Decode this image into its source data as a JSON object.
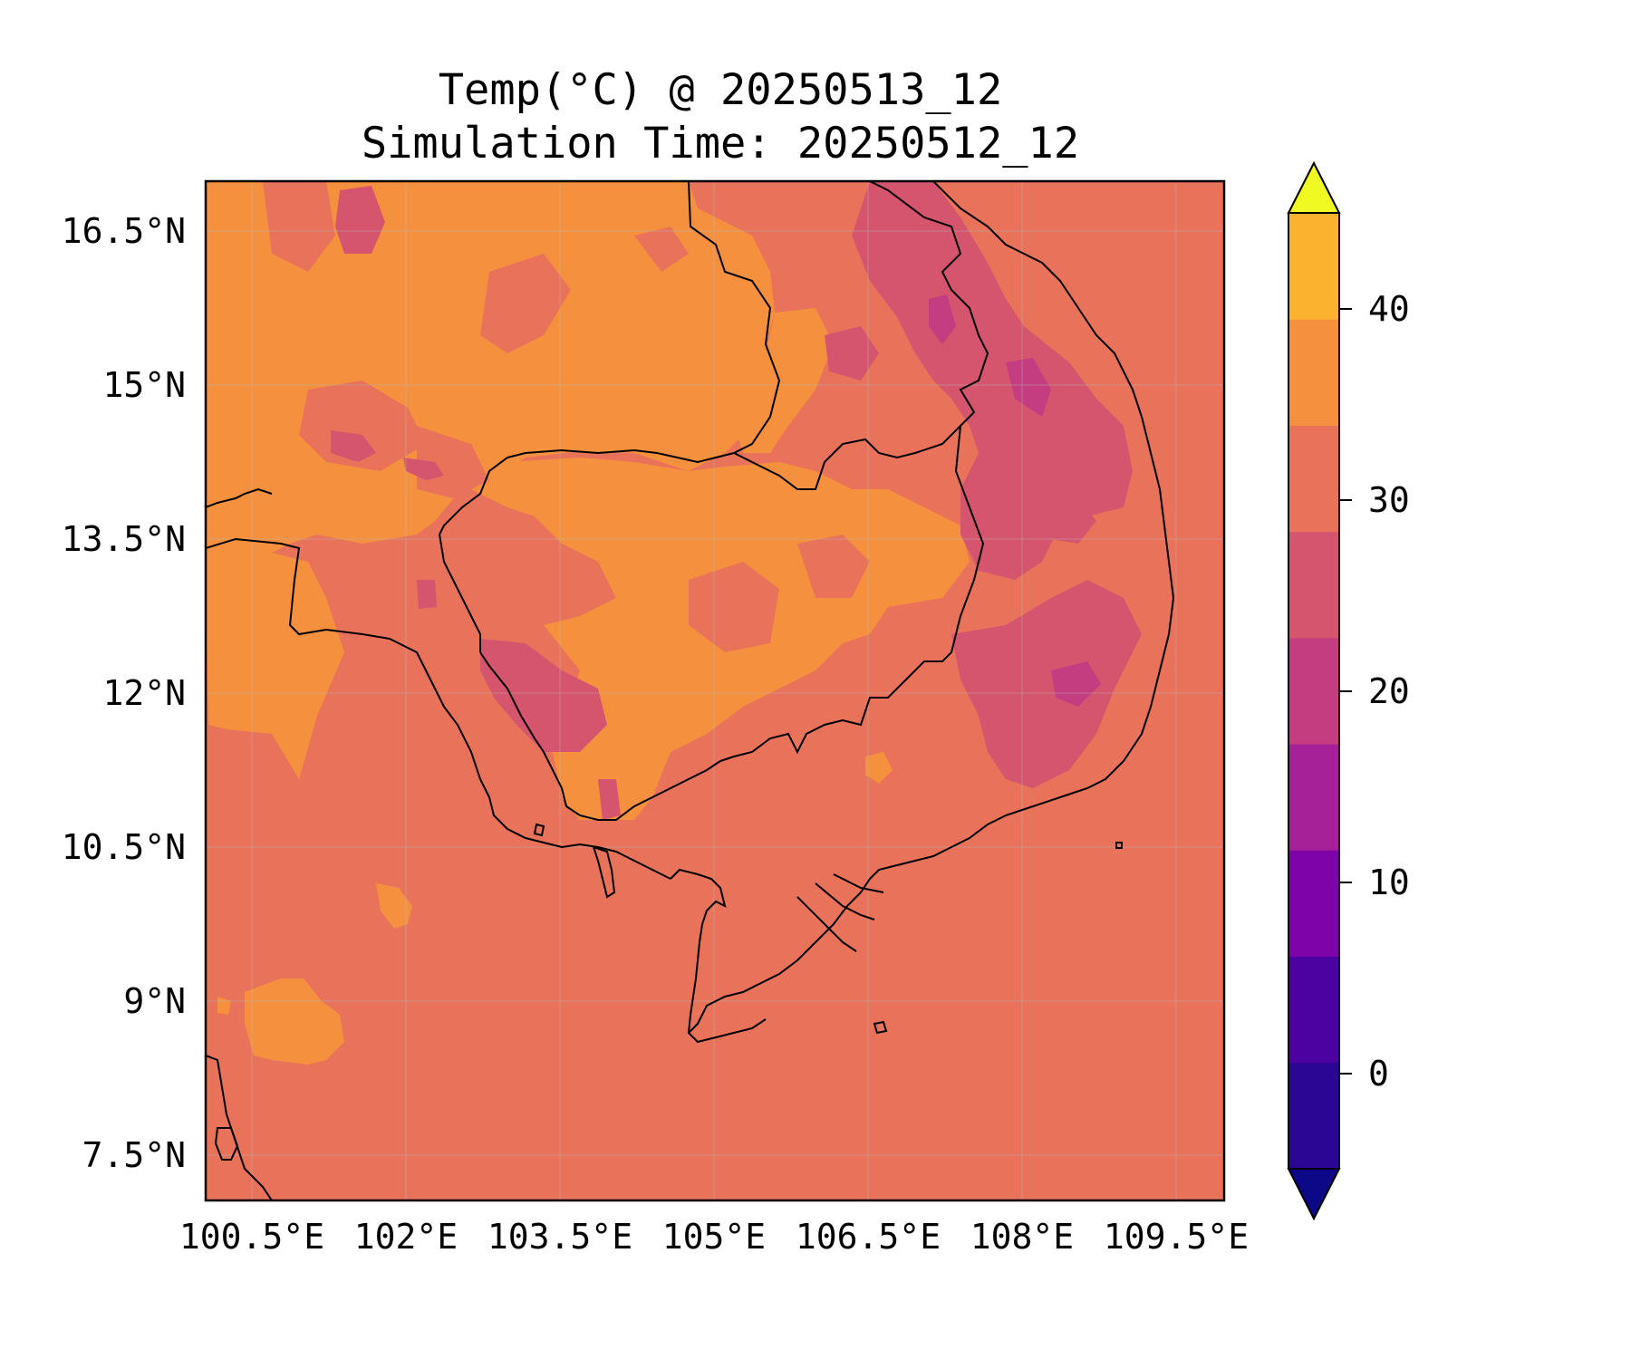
{
  "title": {
    "line1": "Temp(°C) @ 20250513_12",
    "line2": "Simulation Time: 20250512_12"
  },
  "map": {
    "lon_range": [
      100.0,
      109.75
    ],
    "lat_range": [
      7.0,
      16.9
    ],
    "lon_ticks": [
      "100.5°E",
      "102°E",
      "103.5°E",
      "105°E",
      "106.5°E",
      "108°E",
      "109.5°E"
    ],
    "lat_ticks": [
      "16.5°N",
      "15°N",
      "13.5°N",
      "12°N",
      "10.5°N",
      "9°N",
      "7.5°N"
    ],
    "gridlines": true,
    "background_color": "#e8735a"
  },
  "colorbar": {
    "ticks": [
      "40",
      "30",
      "20",
      "10",
      "0"
    ],
    "levels": [
      -5,
      0,
      5,
      10,
      15,
      20,
      25,
      30,
      35,
      40,
      45
    ],
    "colors": [
      "#0d0887",
      "#2b0594",
      "#4c02a1",
      "#7e03a8",
      "#a62098",
      "#c33d80",
      "#d5546e",
      "#e8735a",
      "#f5913e",
      "#fbb32f",
      "#f0f921"
    ],
    "extend": "both"
  }
}
